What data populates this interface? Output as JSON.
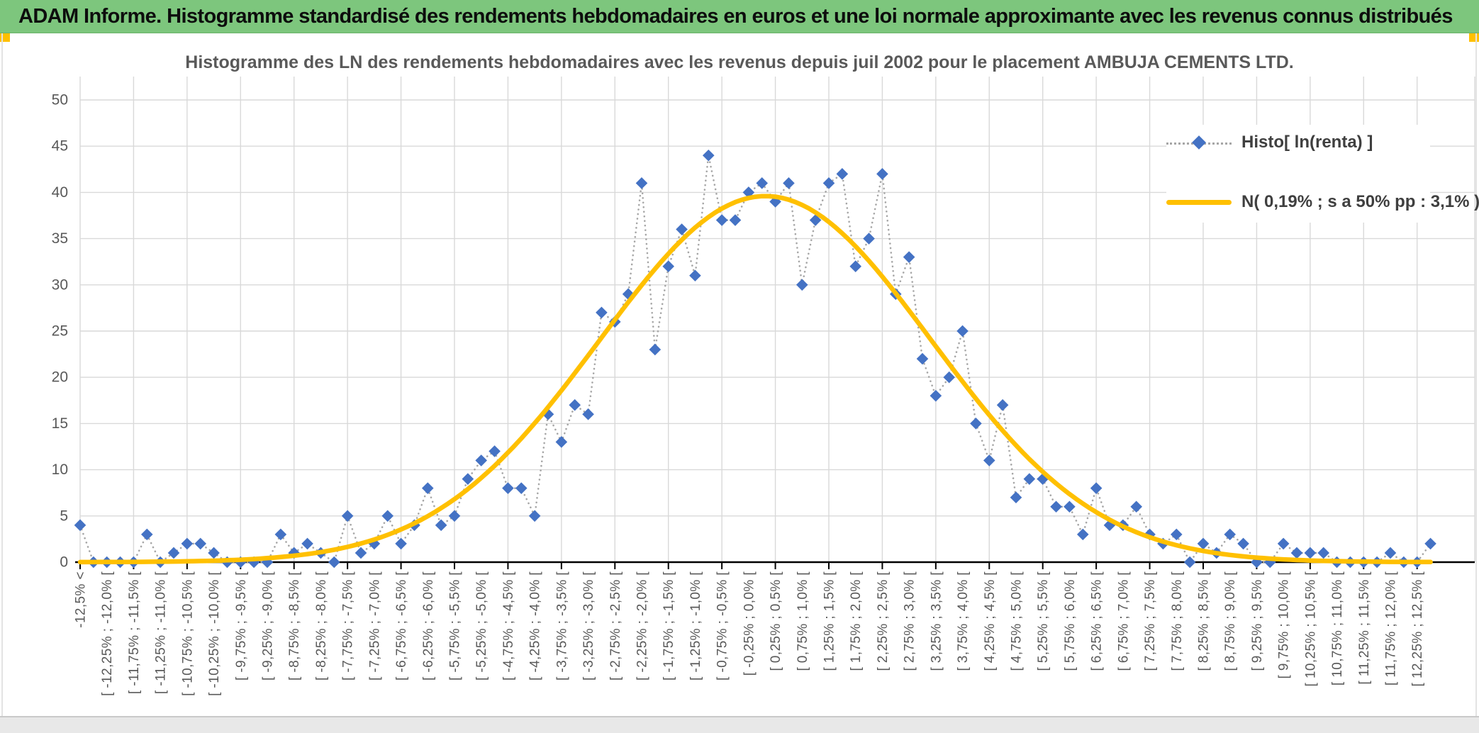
{
  "header": {
    "title": "ADAM Informe. Histogramme standardisé des rendements hebdomadaires en euros et une loi normale approximante avec les revenus connus distribués",
    "bg_color": "#7dc67d",
    "accent_color": "#ffc000"
  },
  "chart_data": {
    "type": "line",
    "title": "Histogramme des LN des rendements hebdomadaires avec les revenus depuis juil 2002 pour le placement AMBUJA CEMENTS LTD.",
    "ylim": [
      0,
      50
    ],
    "y_step": 5,
    "y_tick_labels": [
      "0",
      "5",
      "10",
      "15",
      "20",
      "25",
      "30",
      "35",
      "40",
      "45",
      "50"
    ],
    "grid": true,
    "legend_position": "top-right",
    "bins_total": 102,
    "bin_width_pct": 0.25,
    "first_bin_center_pct": -12.625,
    "bin_labels_shown_every": 2,
    "bin_labels": [
      "-12,5% <",
      "[ -12,25% ; -12,0% [",
      "[ -11,75% ; -11,5% [",
      "[ -11,25% ; -11,0% [",
      "[ -10,75% ; -10,5% [",
      "[ -10,25% ; -10,0% [",
      "[ -9,75% ; -9,5% [",
      "[ -9,25% ; -9,0% [",
      "[ -8,75% ; -8,5% [",
      "[ -8,25% ; -8,0% [",
      "[ -7,75% ; -7,5% [",
      "[ -7,25% ; -7,0% [",
      "[ -6,75% ; -6,5% [",
      "[ -6,25% ; -6,0% [",
      "[ -5,75% ; -5,5% [",
      "[ -5,25% ; -5,0% [",
      "[ -4,75% ; -4,5% [",
      "[ -4,25% ; -4,0% [",
      "[ -3,75% ; -3,5% [",
      "[ -3,25% ; -3,0% [",
      "[ -2,75% ; -2,5% [",
      "[ -2,25% ; -2,0% [",
      "[ -1,75% ; -1,5% [",
      "[ -1,25% ; -1,0% [",
      "[ -0,75% ; -0,5% [",
      "[ -0,25% ; 0,0% [",
      "[ 0,25% ; 0,5% [",
      "[ 0,75% ; 1,0% [",
      "[ 1,25% ; 1,5% [",
      "[ 1,75% ; 2,0% [",
      "[ 2,25% ; 2,5% [",
      "[ 2,75% ; 3,0% [",
      "[ 3,25% ; 3,5% [",
      "[ 3,75% ; 4,0% [",
      "[ 4,25% ; 4,5% [",
      "[ 4,75% ; 5,0% [",
      "[ 5,25% ; 5,5% [",
      "[ 5,75% ; 6,0% [",
      "[ 6,25% ; 6,5% [",
      "[ 6,75% ; 7,0% [",
      "[ 7,25% ; 7,5% [",
      "[ 7,75% ; 8,0% [",
      "[ 8,25% ; 8,5% [",
      "[ 8,75% ; 9,0% [",
      "[ 9,25% ; 9,5% [",
      "[ 9,75% ; 10,0% [",
      "[ 10,25% ; 10,5% [",
      "[ 10,75% ; 11,0% [",
      "[ 11,25% ; 11,5% [",
      "[ 11,75% ; 12,0% [",
      "[ 12,25% ; 12,5% ["
    ],
    "series": [
      {
        "name": "Histo[ ln(renta) ]",
        "marker": "diamond",
        "color": "#4472c4",
        "line_style": "dotted",
        "line_color": "#a6a6a6",
        "values": [
          4,
          0,
          0,
          0,
          0,
          3,
          0,
          1,
          2,
          2,
          1,
          0,
          0,
          0,
          0,
          3,
          1,
          2,
          1,
          0,
          5,
          1,
          2,
          5,
          2,
          4,
          8,
          4,
          5,
          9,
          11,
          12,
          8,
          8,
          5,
          16,
          13,
          17,
          16,
          27,
          26,
          29,
          41,
          23,
          32,
          36,
          31,
          44,
          37,
          37,
          40,
          41,
          39,
          41,
          30,
          37,
          41,
          42,
          32,
          35,
          42,
          29,
          33,
          22,
          18,
          20,
          25,
          15,
          11,
          17,
          7,
          9,
          9,
          6,
          6,
          3,
          8,
          4,
          4,
          6,
          3,
          2,
          3,
          0,
          2,
          1,
          3,
          2,
          0,
          0,
          2,
          1,
          1,
          1,
          0,
          0,
          0,
          0,
          1,
          0,
          0,
          2
        ]
      },
      {
        "name": "N( 0,19% ; s a 50% pp : 3,1% )",
        "type": "normal_curve",
        "color": "#ffc000",
        "mu_pct": 0.19,
        "sigma_pct": 3.1,
        "peak_height": 39.6
      }
    ]
  }
}
